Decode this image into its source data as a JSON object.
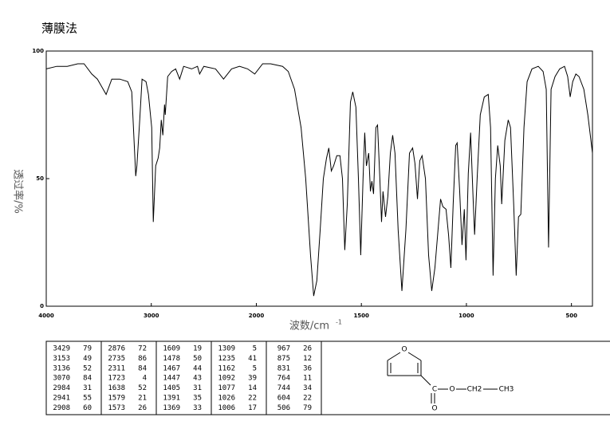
{
  "title": "薄膜法",
  "chart_data": {
    "type": "line",
    "y_label": "透过率/%",
    "x_label": "波数/cm",
    "x_label_superscript": "-1",
    "xlim": [
      4000,
      400
    ],
    "xticks": [
      4000,
      3000,
      2000,
      1500,
      1000,
      500
    ],
    "x_scale_break": 2000,
    "x_scale_break_factor": 2,
    "ylim": [
      0,
      100
    ],
    "yticks": [
      0,
      50,
      100
    ],
    "color": "#000000",
    "x": [
      4000,
      3900,
      3800,
      3700,
      3640,
      3567,
      3513,
      3430,
      3376,
      3300,
      3224,
      3186,
      3148,
      3137,
      3110,
      3088,
      3050,
      3027,
      2996,
      2981,
      2958,
      2935,
      2920,
      2905,
      2890,
      2874,
      2867,
      2844,
      2806,
      2768,
      2730,
      2692,
      2616,
      2560,
      2540,
      2500,
      2388,
      2312,
      2236,
      2160,
      2083,
      2015,
      1970,
      1932,
      1875,
      1848,
      1818,
      1787,
      1765,
      1742,
      1727,
      1712,
      1696,
      1681,
      1666,
      1655,
      1643,
      1632,
      1617,
      1602,
      1590,
      1579,
      1567,
      1552,
      1541,
      1526,
      1514,
      1503,
      1492,
      1484,
      1476,
      1465,
      1457,
      1450,
      1442,
      1431,
      1423,
      1412,
      1404,
      1397,
      1385,
      1374,
      1362,
      1351,
      1340,
      1325,
      1307,
      1288,
      1271,
      1256,
      1245,
      1233,
      1222,
      1211,
      1195,
      1180,
      1165,
      1150,
      1135,
      1123,
      1112,
      1097,
      1085,
      1074,
      1063,
      1051,
      1044,
      1032,
      1021,
      1010,
      1002,
      991,
      980,
      968,
      961,
      949,
      934,
      915,
      896,
      885,
      873,
      862,
      851,
      839,
      832,
      817,
      801,
      790,
      775,
      763,
      752,
      741,
      726,
      711,
      688,
      658,
      635,
      620,
      609,
      597,
      578,
      556,
      533,
      518,
      506,
      494,
      479,
      464,
      441,
      422,
      400
    ],
    "values": [
      93,
      94,
      94,
      95,
      95,
      91,
      89,
      83,
      89,
      89,
      88,
      84,
      51,
      55,
      73,
      89,
      88,
      83,
      70,
      33,
      55,
      58,
      62,
      73,
      67,
      79,
      75,
      90,
      92,
      93,
      89,
      94,
      93,
      94,
      91,
      94,
      93,
      89,
      93,
      94,
      93,
      91,
      95,
      95,
      94,
      92,
      85,
      70,
      50,
      20,
      4,
      10,
      30,
      50,
      58,
      62,
      53,
      55,
      59,
      59,
      50,
      22,
      40,
      80,
      84,
      78,
      50,
      20,
      50,
      68,
      55,
      60,
      45,
      49,
      44,
      70,
      71,
      50,
      33,
      45,
      35,
      43,
      60,
      67,
      60,
      30,
      6,
      30,
      60,
      62,
      56,
      42,
      57,
      59,
      50,
      20,
      6,
      15,
      30,
      42,
      39,
      38,
      28,
      15,
      40,
      63,
      64,
      45,
      24,
      38,
      18,
      52,
      68,
      42,
      28,
      50,
      75,
      82,
      83,
      70,
      12,
      50,
      63,
      55,
      40,
      65,
      73,
      70,
      40,
      12,
      35,
      36,
      70,
      88,
      93,
      94,
      92,
      85,
      23,
      85,
      90,
      93,
      94,
      90,
      82,
      88,
      91,
      90,
      85,
      75,
      60
    ]
  },
  "peak_table": {
    "columns": [
      [
        [
          3429,
          79
        ],
        [
          3153,
          49
        ],
        [
          3136,
          52
        ],
        [
          3070,
          84
        ],
        [
          2984,
          31
        ],
        [
          2941,
          55
        ],
        [
          2908,
          60
        ]
      ],
      [
        [
          2876,
          72
        ],
        [
          2735,
          86
        ],
        [
          2311,
          84
        ],
        [
          1723,
          4
        ],
        [
          1638,
          52
        ],
        [
          1579,
          21
        ],
        [
          1573,
          26
        ]
      ],
      [
        [
          1609,
          19
        ],
        [
          1478,
          50
        ],
        [
          1467,
          44
        ],
        [
          1447,
          43
        ],
        [
          1405,
          31
        ],
        [
          1391,
          35
        ],
        [
          1369,
          33
        ]
      ],
      [
        [
          1309,
          5
        ],
        [
          1235,
          41
        ],
        [
          1162,
          5
        ],
        [
          1092,
          39
        ],
        [
          1077,
          14
        ],
        [
          1026,
          22
        ],
        [
          1006,
          17
        ]
      ],
      [
        [
          967,
          26
        ],
        [
          875,
          12
        ],
        [
          831,
          36
        ],
        [
          764,
          11
        ],
        [
          744,
          34
        ],
        [
          604,
          22
        ],
        [
          506,
          79
        ]
      ]
    ]
  },
  "structure": {
    "atoms": [
      "O",
      "C",
      "O",
      "O",
      "CH2",
      "CH3"
    ]
  }
}
